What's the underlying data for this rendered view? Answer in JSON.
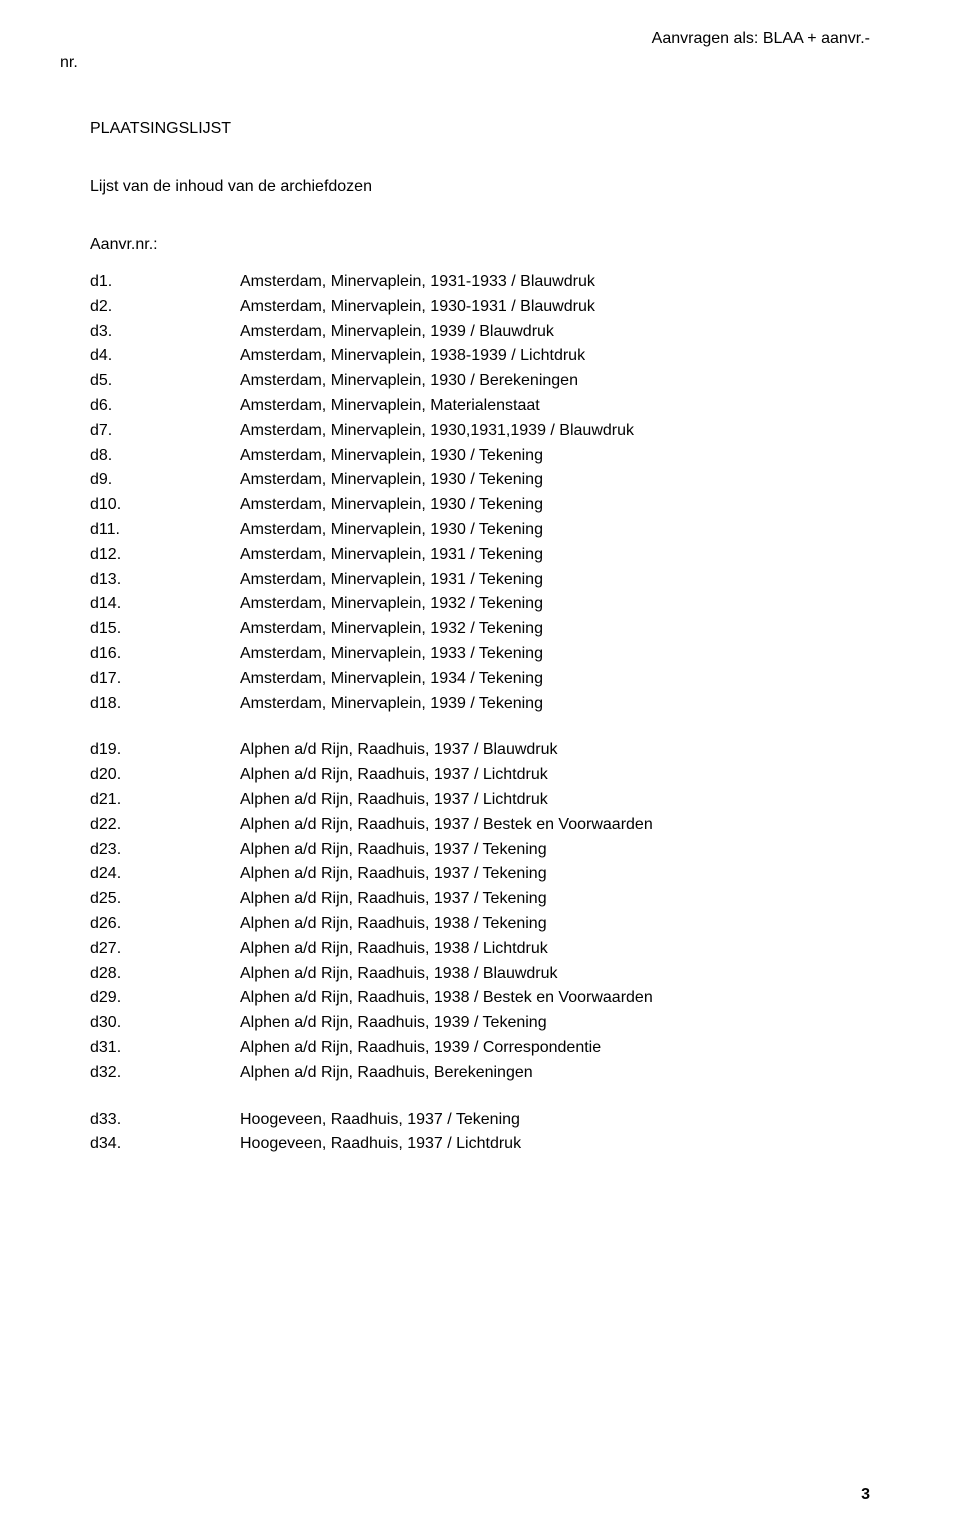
{
  "header": {
    "top_right": "Aanvragen als: BLAA + aanvr.-",
    "top_left": "nr."
  },
  "section_title": "PLAATSINGSLIJST",
  "subtitle": "Lijst van de inhoud van de archiefdozen",
  "aanvr_label": "Aanvr.nr.:",
  "groups": [
    {
      "rows": [
        {
          "id": "d1.",
          "desc": "Amsterdam, Minervaplein, 1931-1933 / Blauwdruk"
        },
        {
          "id": "d2.",
          "desc": "Amsterdam, Minervaplein, 1930-1931 / Blauwdruk"
        },
        {
          "id": "d3.",
          "desc": "Amsterdam, Minervaplein, 1939 / Blauwdruk"
        },
        {
          "id": "d4.",
          "desc": "Amsterdam, Minervaplein, 1938-1939 / Lichtdruk"
        },
        {
          "id": "d5.",
          "desc": "Amsterdam, Minervaplein, 1930 / Berekeningen"
        },
        {
          "id": "d6.",
          "desc": "Amsterdam, Minervaplein, Materialenstaat"
        },
        {
          "id": "d7.",
          "desc": "Amsterdam, Minervaplein, 1930,1931,1939 / Blauwdruk"
        },
        {
          "id": "d8.",
          "desc": "Amsterdam, Minervaplein, 1930 / Tekening"
        },
        {
          "id": "d9.",
          "desc": "Amsterdam, Minervaplein, 1930 / Tekening"
        },
        {
          "id": "d10.",
          "desc": "Amsterdam, Minervaplein, 1930 / Tekening"
        },
        {
          "id": "d11.",
          "desc": "Amsterdam, Minervaplein, 1930 / Tekening"
        },
        {
          "id": "d12.",
          "desc": "Amsterdam, Minervaplein, 1931 / Tekening"
        },
        {
          "id": "d13.",
          "desc": "Amsterdam, Minervaplein, 1931 / Tekening"
        },
        {
          "id": "d14.",
          "desc": "Amsterdam, Minervaplein, 1932 / Tekening"
        },
        {
          "id": "d15.",
          "desc": "Amsterdam, Minervaplein, 1932 / Tekening"
        },
        {
          "id": "d16.",
          "desc": "Amsterdam, Minervaplein, 1933 / Tekening"
        },
        {
          "id": "d17.",
          "desc": "Amsterdam, Minervaplein, 1934 / Tekening"
        },
        {
          "id": "d18.",
          "desc": "Amsterdam, Minervaplein, 1939 / Tekening"
        }
      ]
    },
    {
      "rows": [
        {
          "id": "d19.",
          "desc": "Alphen a/d Rijn, Raadhuis, 1937 / Blauwdruk"
        },
        {
          "id": "d20.",
          "desc": "Alphen a/d Rijn, Raadhuis, 1937 / Lichtdruk"
        },
        {
          "id": "d21.",
          "desc": "Alphen a/d Rijn, Raadhuis, 1937 / Lichtdruk"
        },
        {
          "id": "d22.",
          "desc": "Alphen a/d Rijn, Raadhuis, 1937 / Bestek en Voorwaarden"
        },
        {
          "id": "d23.",
          "desc": "Alphen a/d Rijn, Raadhuis, 1937 / Tekening"
        },
        {
          "id": "d24.",
          "desc": "Alphen a/d Rijn, Raadhuis, 1937 / Tekening"
        },
        {
          "id": "d25.",
          "desc": "Alphen a/d Rijn, Raadhuis, 1937 / Tekening"
        },
        {
          "id": "d26.",
          "desc": "Alphen a/d Rijn, Raadhuis, 1938 / Tekening"
        },
        {
          "id": "d27.",
          "desc": "Alphen a/d Rijn, Raadhuis, 1938 / Lichtdruk"
        },
        {
          "id": "d28.",
          "desc": "Alphen a/d Rijn, Raadhuis, 1938 / Blauwdruk"
        },
        {
          "id": "d29.",
          "desc": "Alphen a/d Rijn, Raadhuis, 1938 / Bestek en Voorwaarden"
        },
        {
          "id": "d30.",
          "desc": "Alphen a/d Rijn, Raadhuis, 1939 / Tekening"
        },
        {
          "id": "d31.",
          "desc": "Alphen a/d Rijn, Raadhuis, 1939 / Correspondentie"
        },
        {
          "id": "d32.",
          "desc": "Alphen a/d Rijn, Raadhuis, Berekeningen"
        }
      ]
    },
    {
      "rows": [
        {
          "id": "d33.",
          "desc": "Hoogeveen, Raadhuis, 1937 / Tekening"
        },
        {
          "id": "d34.",
          "desc": "Hoogeveen, Raadhuis, 1937 / Lichtdruk"
        }
      ]
    }
  ],
  "page_number": "3"
}
